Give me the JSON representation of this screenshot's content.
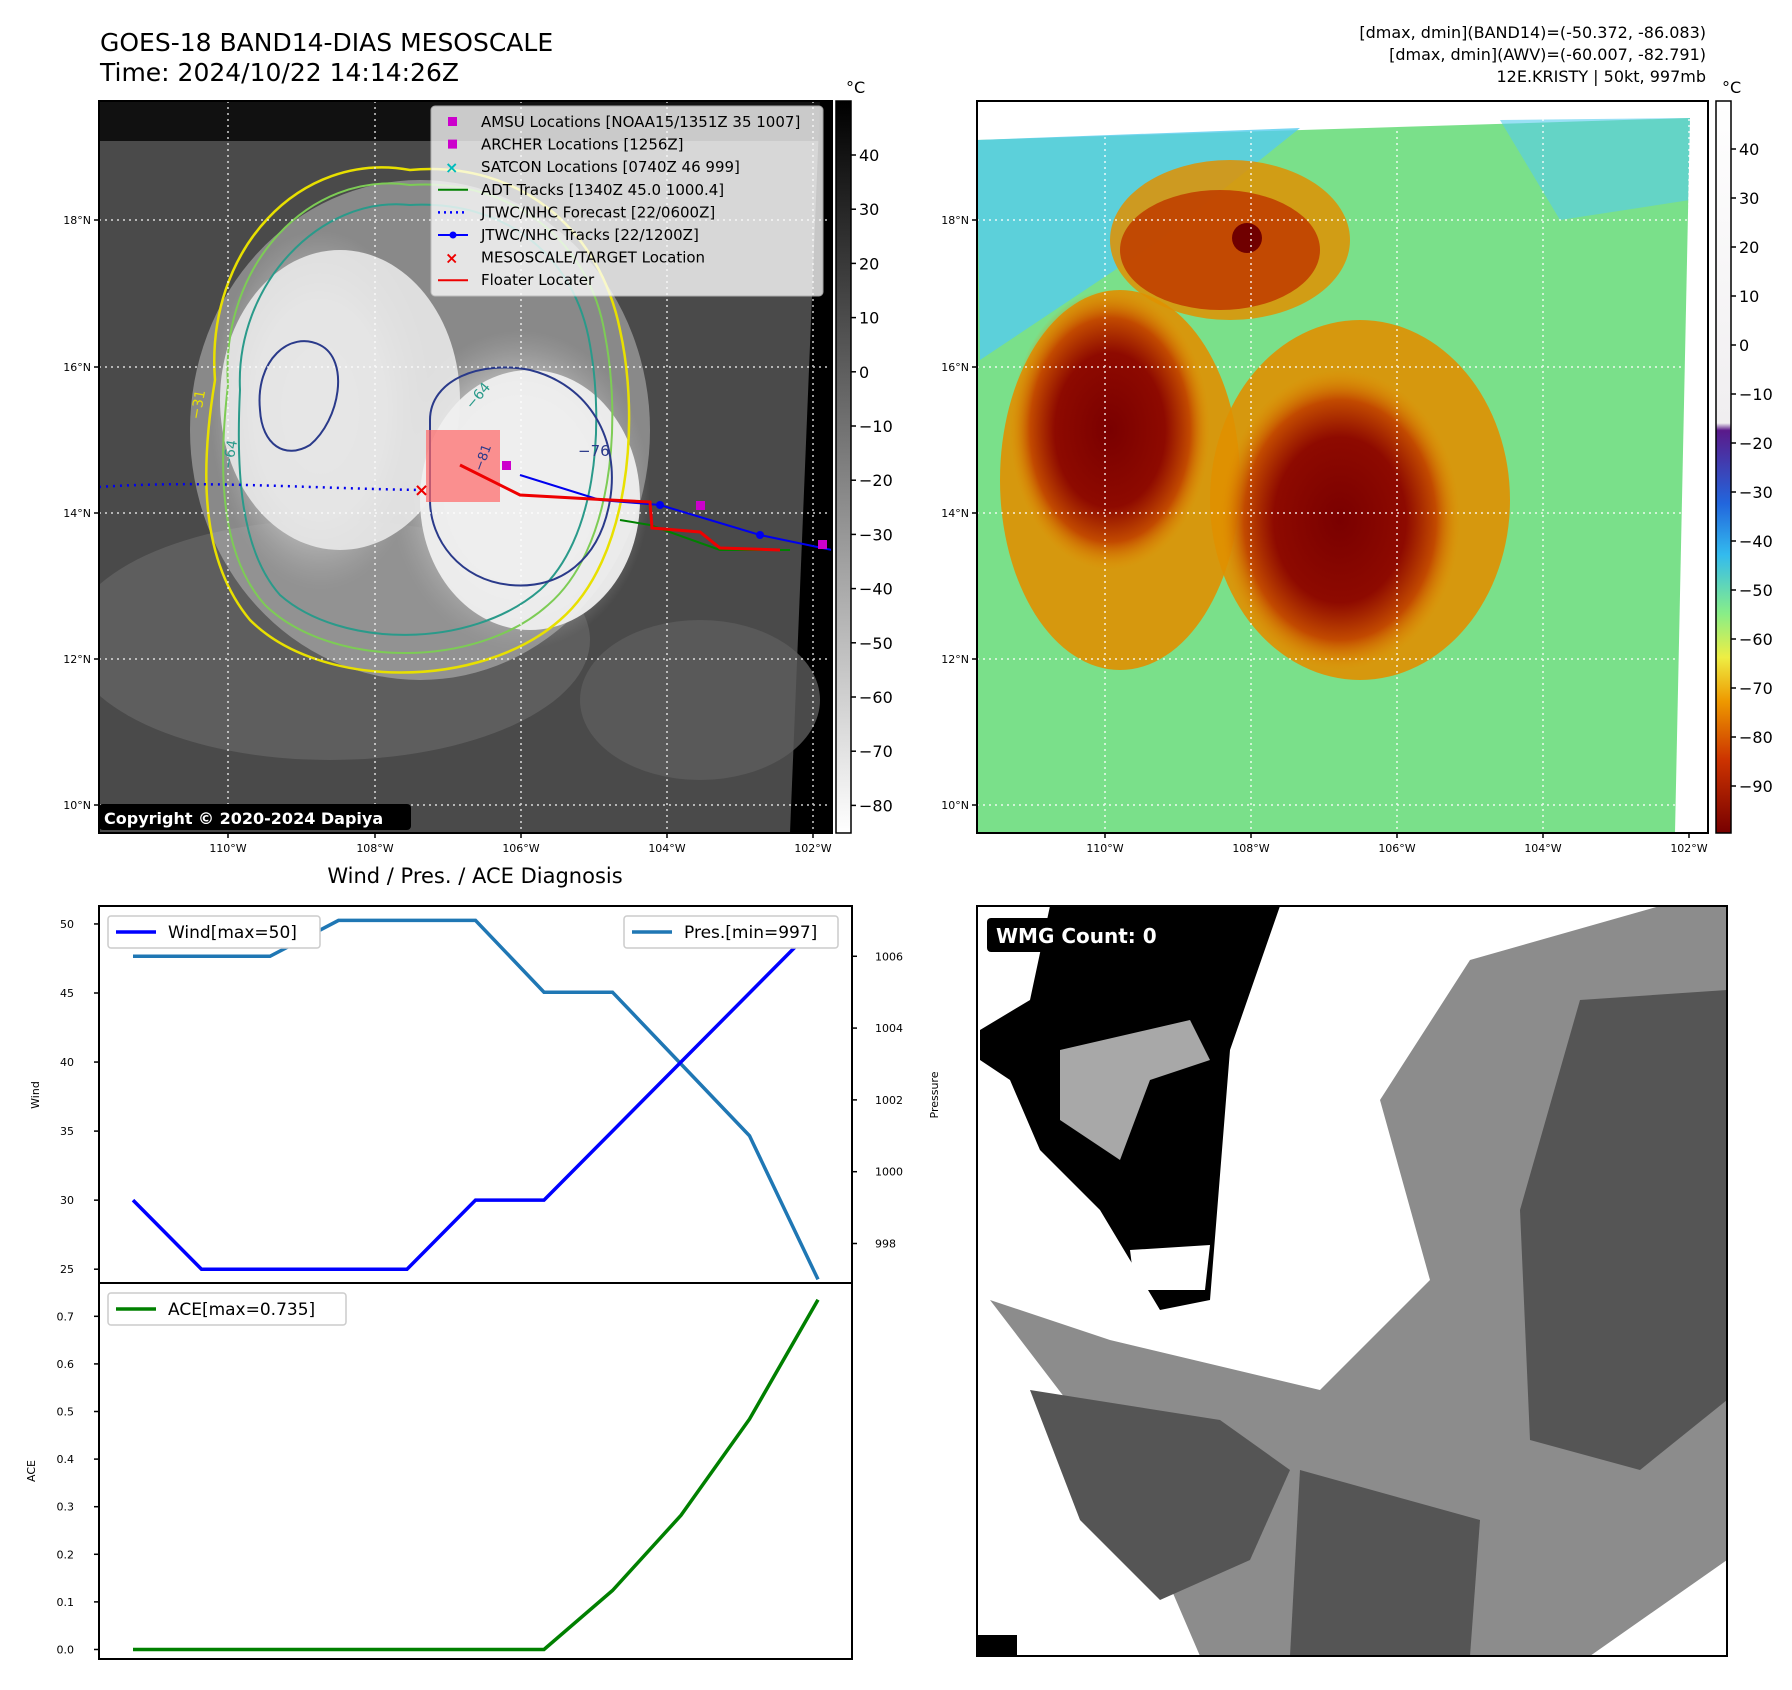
{
  "header": {
    "title": "GOES-18 BAND14-DIAS MESOSCALE",
    "time": "Time: 2024/10/22 14:14:26Z",
    "dmax_band14": "[dmax, dmin](BAND14)=(-50.372, -86.083)",
    "dmax_awv": "[dmax, dmin](AWV)=(-60.007, -82.791)",
    "storm": "12E.KRISTY | 50kt, 997mb"
  },
  "maps": {
    "lat_labels": [
      "18°N",
      "16°N",
      "14°N",
      "12°N",
      "10°N"
    ],
    "lon_labels": [
      "110°W",
      "108°W",
      "106°W",
      "104°W",
      "102°W"
    ],
    "copyright": "Copyright © 2020-2024 Dapiya",
    "unit": "°C",
    "ir_colorbar_ticks": [
      "40",
      "30",
      "20",
      "10",
      "0",
      "−10",
      "−20",
      "−30",
      "−40",
      "−50",
      "−60",
      "−70",
      "−80"
    ],
    "rainbow_colorbar_ticks": [
      "40",
      "30",
      "20",
      "10",
      "0",
      "−10",
      "−20",
      "−30",
      "−40",
      "−50",
      "−60",
      "−70",
      "−80",
      "−90"
    ],
    "contour_labels": [
      "−31",
      "−64",
      "−64",
      "−76",
      "−81"
    ],
    "legend": [
      {
        "label": "AMSU Locations [NOAA15/1351Z 35 1007]",
        "color": "#cc00cc",
        "symbol": "square"
      },
      {
        "label": "ARCHER Locations [1256Z]",
        "color": "#cc00cc",
        "symbol": "square"
      },
      {
        "label": "SATCON Locations [0740Z 46 999]",
        "color": "#00bbbb",
        "symbol": "x"
      },
      {
        "label": "ADT Tracks [1340Z 45.0 1000.4]",
        "color": "#008000",
        "symbol": "line"
      },
      {
        "label": "JTWC/NHC Forecast [22/0600Z]",
        "color": "#0000ff",
        "symbol": "dotted"
      },
      {
        "label": "JTWC/NHC Tracks [22/1200Z]",
        "color": "#0000ff",
        "symbol": "line-dot"
      },
      {
        "label": "MESOSCALE/TARGET Location",
        "color": "#ee0000",
        "symbol": "x"
      },
      {
        "label": "Floater Locater",
        "color": "#ee0000",
        "symbol": "line"
      }
    ]
  },
  "wmg": {
    "label": "WMG Count: 0"
  },
  "chart_data": [
    {
      "type": "line",
      "title": "Wind / Pres. / ACE Diagnosis",
      "xlabel": "",
      "ylabel": "Wind",
      "ylim": [
        24,
        51.3
      ],
      "yticks": [
        25,
        30,
        35,
        40,
        45,
        50
      ],
      "series": [
        {
          "name": "Wind[max=50]",
          "color": "#0000ff",
          "values": [
            30,
            25,
            25,
            25,
            25,
            30,
            30,
            35,
            40,
            45,
            50
          ]
        }
      ],
      "secondary_axis": {
        "ylabel": "Pressure",
        "ylim": [
          996.9,
          1007.4
        ],
        "yticks": [
          998,
          1000,
          1002,
          1004,
          1006
        ],
        "series": [
          {
            "name": "Pres.[min=997]",
            "color": "#1f77b4",
            "values": [
              1006,
              1006,
              1006,
              1007,
              1007,
              1007,
              1005,
              1005,
              1003,
              1001,
              997
            ]
          }
        ]
      }
    },
    {
      "type": "line",
      "xlabel": "",
      "ylabel": "ACE",
      "ylim": [
        -0.02,
        0.77
      ],
      "yticks": [
        0.0,
        0.1,
        0.2,
        0.3,
        0.4,
        0.5,
        0.6,
        0.7
      ],
      "series": [
        {
          "name": "ACE[max=0.735]",
          "color": "#008000",
          "values": [
            0,
            0,
            0,
            0,
            0,
            0,
            0,
            0.124,
            0.282,
            0.484,
            0.735
          ]
        }
      ]
    }
  ]
}
